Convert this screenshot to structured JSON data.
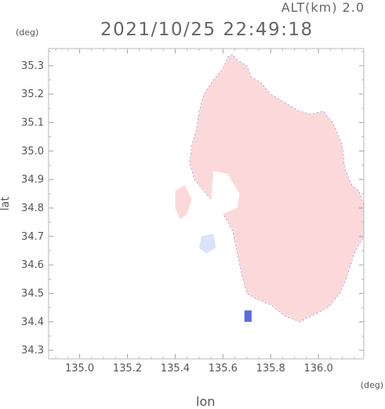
{
  "header": {
    "altitude_label": "ALT(km) 2.0",
    "datetime": "2021/10/25 22:49:18"
  },
  "axes": {
    "x_unit": "(deg)",
    "y_unit": "(deg)",
    "x_label": "lon",
    "y_label": "lat"
  },
  "chart_data": {
    "type": "heatmap",
    "xlabel": "lon",
    "ylabel": "lat",
    "xlim": [
      134.87,
      136.19
    ],
    "ylim": [
      34.27,
      35.36
    ],
    "x_ticks": [
      135.0,
      135.2,
      135.4,
      135.6,
      135.8,
      136.0
    ],
    "y_ticks": [
      34.3,
      34.4,
      34.5,
      34.6,
      34.7,
      34.8,
      34.9,
      35.0,
      35.1,
      35.2,
      35.3
    ],
    "x_tick_labels": [
      "135.0",
      "135.2",
      "135.4",
      "135.6",
      "135.8",
      "136.0"
    ],
    "y_tick_labels": [
      "34.3",
      "34.4",
      "34.5",
      "34.6",
      "34.7",
      "34.8",
      "34.9",
      "35.0",
      "35.1",
      "35.2",
      "35.3"
    ],
    "colors": {
      "main_field": "#fbd9da",
      "light_field": "#fde9ea",
      "blue_weak": "#dde2fb",
      "blue_strong": "#5b6ce0",
      "edge": "#7a7af0"
    },
    "regions": [
      {
        "name": "main-echo",
        "color": "#fbd9da",
        "polygon": [
          [
            135.62,
            35.33
          ],
          [
            135.64,
            35.34
          ],
          [
            135.66,
            35.32
          ],
          [
            135.7,
            35.3
          ],
          [
            135.72,
            35.26
          ],
          [
            135.76,
            35.24
          ],
          [
            135.8,
            35.2
          ],
          [
            135.86,
            35.17
          ],
          [
            135.92,
            35.14
          ],
          [
            135.97,
            35.13
          ],
          [
            136.02,
            35.14
          ],
          [
            136.06,
            35.1
          ],
          [
            136.1,
            35.02
          ],
          [
            136.11,
            34.94
          ],
          [
            136.14,
            34.88
          ],
          [
            136.17,
            34.86
          ],
          [
            136.19,
            34.81
          ],
          [
            136.19,
            34.7
          ],
          [
            136.15,
            34.64
          ],
          [
            136.12,
            34.56
          ],
          [
            136.09,
            34.5
          ],
          [
            136.04,
            34.45
          ],
          [
            135.97,
            34.42
          ],
          [
            135.92,
            34.4
          ],
          [
            135.86,
            34.42
          ],
          [
            135.8,
            34.46
          ],
          [
            135.74,
            34.48
          ],
          [
            135.7,
            34.5
          ],
          [
            135.68,
            34.56
          ],
          [
            135.66,
            34.64
          ],
          [
            135.64,
            34.72
          ],
          [
            135.6,
            34.78
          ],
          [
            135.56,
            34.82
          ],
          [
            135.52,
            34.86
          ],
          [
            135.48,
            34.9
          ],
          [
            135.46,
            34.96
          ],
          [
            135.47,
            35.02
          ],
          [
            135.49,
            35.08
          ],
          [
            135.5,
            35.14
          ],
          [
            135.52,
            35.2
          ],
          [
            135.56,
            35.25
          ],
          [
            135.6,
            35.29
          ]
        ]
      },
      {
        "name": "west-arc-echo",
        "color": "#fbd9da",
        "polygon": [
          [
            135.4,
            34.86
          ],
          [
            135.44,
            34.88
          ],
          [
            135.47,
            34.83
          ],
          [
            135.45,
            34.78
          ],
          [
            135.42,
            34.76
          ],
          [
            135.4,
            34.8
          ]
        ]
      },
      {
        "name": "gap-area",
        "color": "#ffffff",
        "polygon": [
          [
            135.56,
            34.93
          ],
          [
            135.62,
            34.92
          ],
          [
            135.67,
            34.85
          ],
          [
            135.66,
            34.8
          ],
          [
            135.6,
            34.78
          ],
          [
            135.55,
            34.82
          ]
        ]
      },
      {
        "name": "blue-patch-west",
        "color": "#dde2fb",
        "polygon": [
          [
            135.51,
            34.7
          ],
          [
            135.56,
            34.71
          ],
          [
            135.57,
            34.66
          ],
          [
            135.53,
            34.64
          ],
          [
            135.5,
            34.66
          ]
        ]
      },
      {
        "name": "blue-patch-south",
        "color": "#5b6ce0",
        "polygon": [
          [
            135.69,
            34.44
          ],
          [
            135.72,
            34.44
          ],
          [
            135.72,
            34.4
          ],
          [
            135.69,
            34.4
          ]
        ]
      }
    ]
  }
}
